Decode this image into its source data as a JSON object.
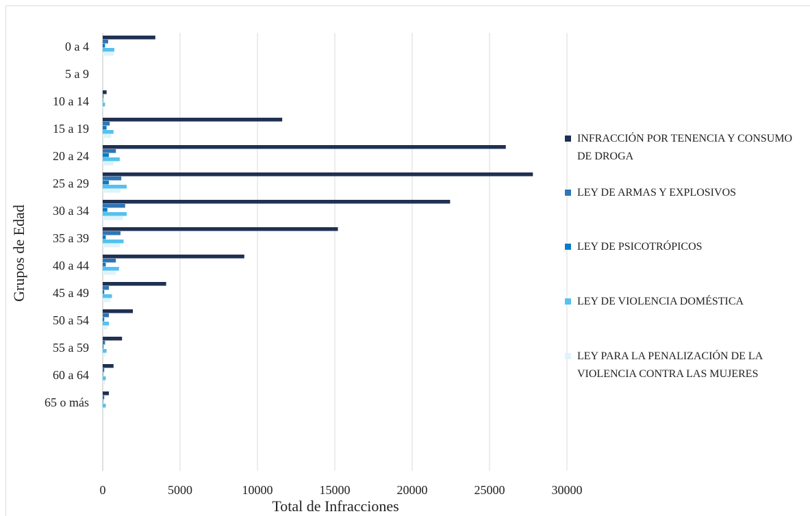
{
  "chart_data": {
    "type": "bar",
    "orientation": "horizontal",
    "x_label": "Total de Infracciones",
    "y_label": "Grupos de Edad",
    "categories": [
      "0 a 4",
      "5 a 9",
      "10 a 14",
      "15 a 19",
      "20 a 24",
      "25 a 29",
      "30 a 34",
      "35 a 39",
      "40 a 44",
      "45 a 49",
      "50 a 54",
      "55 a 59",
      "60 a 64",
      "65 o más",
      null,
      null
    ],
    "series": [
      {
        "name": "INFRACCIÓN POR TENENCIA Y CONSUMO DE DROGA",
        "color": "#1f3152",
        "values": [
          3400,
          0,
          250,
          11600,
          26050,
          27800,
          22450,
          15200,
          9150,
          4100,
          1950,
          1250,
          700,
          400,
          null,
          null
        ]
      },
      {
        "name": "LEY DE ARMAS Y EXPLOSIVOS",
        "color": "#2e75b6",
        "values": [
          350,
          0,
          50,
          450,
          850,
          1200,
          1450,
          1150,
          850,
          400,
          400,
          150,
          100,
          100,
          null,
          null
        ]
      },
      {
        "name": "LEY DE PSICOTRÓPICOS",
        "color": "#0a7cc4",
        "values": [
          150,
          0,
          30,
          250,
          400,
          400,
          300,
          200,
          200,
          100,
          100,
          50,
          30,
          30,
          null,
          null
        ]
      },
      {
        "name": "LEY DE VIOLENCIA DOMÉSTICA",
        "color": "#55c1ee",
        "values": [
          750,
          0,
          150,
          700,
          1100,
          1550,
          1550,
          1350,
          1050,
          600,
          400,
          250,
          200,
          200,
          null,
          null
        ]
      },
      {
        "name": "LEY PARA LA PENALIZACIÓN DE LA VIOLENCIA CONTRA LAS MUJERES",
        "color": "#def3fb",
        "values": [
          700,
          0,
          80,
          550,
          700,
          1150,
          1300,
          1100,
          850,
          500,
          300,
          150,
          150,
          100,
          null,
          null
        ]
      }
    ],
    "xlim": [
      0,
      30000
    ],
    "xticks": [
      0,
      5000,
      10000,
      15000,
      20000,
      25000,
      30000
    ],
    "grid": true,
    "legend": "right"
  }
}
